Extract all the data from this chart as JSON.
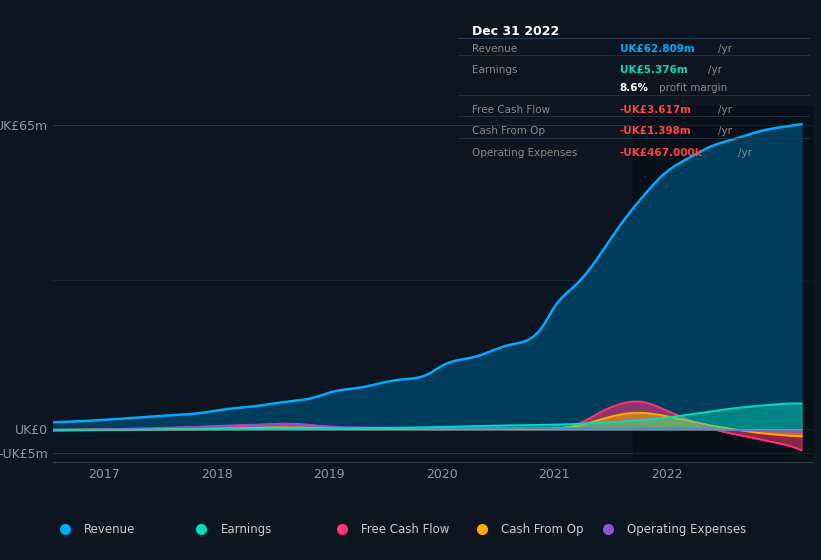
{
  "bg_color": "#0d1521",
  "chart_bg": "#0d1521",
  "ylim": [
    -7,
    69
  ],
  "xlim": [
    2016.55,
    2023.3
  ],
  "xticks": [
    2017,
    2018,
    2019,
    2020,
    2021,
    2022
  ],
  "ylabel_top": "UK£65m",
  "ylabel_zero": "UK£0",
  "ylabel_neg": "-UK£5m",
  "y_top": 65,
  "y_zero": 0,
  "y_neg": -5,
  "y_mid1": 32,
  "grid_color": "#1e3048",
  "series_revenue": {
    "color": "#00aaff",
    "fill_color": "#003d5c",
    "x": [
      2016.55,
      2017.0,
      2017.3,
      2017.6,
      2017.9,
      2018.0,
      2018.3,
      2018.6,
      2018.9,
      2019.0,
      2019.3,
      2019.6,
      2019.9,
      2020.0,
      2020.3,
      2020.6,
      2020.9,
      2021.0,
      2021.2,
      2021.4,
      2021.6,
      2021.8,
      2022.0,
      2022.2,
      2022.4,
      2022.6,
      2022.8,
      2023.0,
      2023.2
    ],
    "y": [
      1.5,
      2.0,
      2.5,
      3.0,
      3.6,
      4.0,
      4.8,
      5.8,
      7.0,
      7.8,
      9.0,
      10.5,
      12.0,
      13.5,
      15.5,
      18.0,
      22.0,
      26.0,
      31.0,
      37.0,
      44.0,
      50.0,
      55.0,
      58.0,
      60.5,
      62.0,
      63.5,
      64.5,
      65.2
    ]
  },
  "series_earnings": {
    "color": "#00ddbb",
    "fill_color": "#00ddbb",
    "x": [
      2016.55,
      2017.0,
      2017.5,
      2018.0,
      2018.5,
      2019.0,
      2019.5,
      2020.0,
      2020.5,
      2021.0,
      2021.5,
      2022.0,
      2022.3,
      2022.6,
      2022.9,
      2023.0,
      2023.2
    ],
    "y": [
      -0.2,
      -0.1,
      0.0,
      0.05,
      0.1,
      0.2,
      0.3,
      0.5,
      0.8,
      1.0,
      1.5,
      2.5,
      3.5,
      4.5,
      5.2,
      5.4,
      5.5
    ]
  },
  "series_fcf": {
    "color": "#ff3377",
    "fill_color": "#ff3377",
    "x": [
      2016.55,
      2017.0,
      2017.5,
      2018.0,
      2018.2,
      2018.4,
      2018.6,
      2018.8,
      2019.0,
      2019.5,
      2020.0,
      2020.5,
      2021.0,
      2021.2,
      2021.4,
      2021.6,
      2021.8,
      2022.0,
      2022.15,
      2022.3,
      2022.5,
      2022.7,
      2022.9,
      2023.0,
      2023.1,
      2023.2
    ],
    "y": [
      -0.3,
      -0.15,
      -0.05,
      0.2,
      0.6,
      1.0,
      1.2,
      1.0,
      0.4,
      0.1,
      0.05,
      0.1,
      0.15,
      1.0,
      3.5,
      5.5,
      5.8,
      4.0,
      2.5,
      1.0,
      -0.5,
      -1.5,
      -2.5,
      -3.0,
      -3.6,
      -4.5
    ]
  },
  "series_cfo": {
    "color": "#ffaa00",
    "fill_color": "#ffaa00",
    "x": [
      2016.55,
      2017.0,
      2017.5,
      2018.0,
      2018.2,
      2018.4,
      2018.6,
      2018.8,
      2019.0,
      2019.5,
      2020.0,
      2020.5,
      2021.0,
      2021.2,
      2021.4,
      2021.6,
      2021.8,
      2022.0,
      2022.2,
      2022.4,
      2022.6,
      2022.8,
      2023.0,
      2023.2
    ],
    "y": [
      -0.1,
      0.0,
      0.1,
      0.15,
      0.2,
      0.35,
      0.4,
      0.35,
      0.2,
      0.1,
      0.1,
      0.15,
      0.2,
      0.7,
      2.0,
      3.2,
      3.5,
      2.8,
      1.8,
      0.8,
      0.0,
      -0.7,
      -1.2,
      -1.5
    ]
  },
  "series_opex": {
    "color": "#8855cc",
    "fill_color": "#8855cc",
    "x": [
      2016.55,
      2017.0,
      2017.5,
      2018.0,
      2018.2,
      2018.4,
      2018.6,
      2018.8,
      2019.0,
      2019.5,
      2020.0,
      2020.5,
      2021.0,
      2021.5,
      2022.0,
      2022.2,
      2022.4,
      2022.6,
      2022.8,
      2023.0,
      2023.2
    ],
    "y": [
      -0.05,
      0.0,
      0.3,
      0.7,
      0.9,
      1.0,
      1.0,
      0.9,
      0.6,
      0.35,
      0.2,
      0.2,
      0.2,
      0.2,
      0.25,
      0.15,
      0.0,
      -0.15,
      -0.3,
      -0.45,
      -0.5
    ]
  },
  "infobox_title": "Dec 31 2022",
  "infobox_rows": [
    {
      "label": "Revenue",
      "value": "UK£62.809m",
      "suffix": " /yr",
      "vcolor": "#00aaff",
      "has_sep": true
    },
    {
      "label": "Earnings",
      "value": "UK£5.376m",
      "suffix": " /yr",
      "vcolor": "#00ddbb",
      "has_sep": false
    },
    {
      "label": "",
      "value": "8.6%",
      "suffix": " profit margin",
      "vcolor": "white",
      "has_sep": true
    },
    {
      "label": "Free Cash Flow",
      "value": "-UK£3.617m",
      "suffix": " /yr",
      "vcolor": "#ff4444",
      "has_sep": true
    },
    {
      "label": "Cash From Op",
      "value": "-UK£1.398m",
      "suffix": " /yr",
      "vcolor": "#ff4444",
      "has_sep": true
    },
    {
      "label": "Operating Expenses",
      "value": "-UK£467.000k",
      "suffix": " /yr",
      "vcolor": "#ff4444",
      "has_sep": false
    }
  ],
  "legend": [
    {
      "label": "Revenue",
      "color": "#00aaff"
    },
    {
      "label": "Earnings",
      "color": "#00ddbb"
    },
    {
      "label": "Free Cash Flow",
      "color": "#ff3377"
    },
    {
      "label": "Cash From Op",
      "color": "#ffaa00"
    },
    {
      "label": "Operating Expenses",
      "color": "#8855cc"
    }
  ]
}
